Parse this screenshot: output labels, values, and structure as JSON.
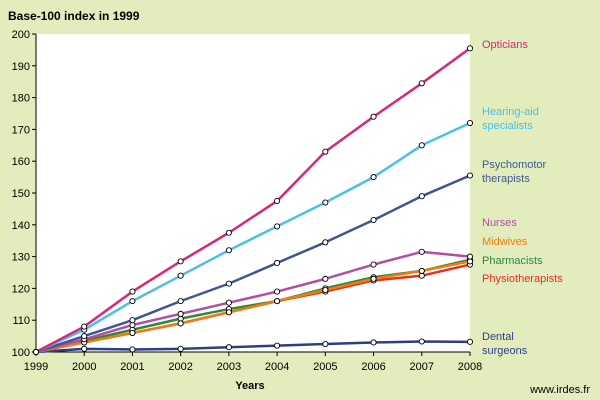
{
  "chart_data": {
    "type": "line",
    "title": "Base-100 index in 1999",
    "xlabel": "Years",
    "ylabel": "",
    "source_text": "www.irdes.fr",
    "x": [
      1999,
      2000,
      2001,
      2002,
      2003,
      2004,
      2005,
      2006,
      2007,
      2008
    ],
    "ylim": [
      100,
      200
    ],
    "yticks": [
      100,
      110,
      120,
      130,
      140,
      150,
      160,
      170,
      180,
      190,
      200
    ],
    "grid": false,
    "legend": "inline-right",
    "series": [
      {
        "name": "Opticians",
        "label_lines": [
          "Opticians"
        ],
        "color": "#d6287a",
        "values": [
          100,
          108,
          119,
          128.5,
          137.5,
          147.5,
          163,
          174,
          184.5,
          195.5
        ]
      },
      {
        "name": "Hearing-aid specialists",
        "label_lines": [
          "Hearing-aid",
          "specialists"
        ],
        "color": "#4cc0e6",
        "values": [
          100,
          107,
          116,
          124,
          132,
          139.5,
          147,
          155,
          165,
          172
        ]
      },
      {
        "name": "Psychomotor therapists",
        "label_lines": [
          "Psychomotor",
          "therapists"
        ],
        "color": "#3e5793",
        "values": [
          100,
          105,
          110,
          116,
          121.5,
          128,
          134.5,
          141.5,
          149,
          155.5
        ]
      },
      {
        "name": "Nurses",
        "label_lines": [
          "Nurses"
        ],
        "color": "#b44ea0",
        "values": [
          100,
          104,
          108.5,
          112,
          115.5,
          119,
          123,
          127.5,
          131.5,
          130
        ]
      },
      {
        "name": "Midwives",
        "label_lines": [
          "Midwives"
        ],
        "color": "#ee7d10",
        "values": [
          100,
          103,
          106,
          109,
          112.5,
          116,
          119.5,
          123,
          125.5,
          128.5
        ]
      },
      {
        "name": "Pharmacists",
        "label_lines": [
          "Pharmacists"
        ],
        "color": "#2a8a3a",
        "values": [
          100,
          103.5,
          107,
          110.5,
          113.5,
          116,
          120,
          123.5,
          125.5,
          129
        ]
      },
      {
        "name": "Physiotherapists",
        "label_lines": [
          "Physiotherapists"
        ],
        "color": "#e8301e",
        "values": [
          100,
          103,
          106,
          109,
          112.5,
          116,
          119,
          122.5,
          124,
          127.5
        ]
      },
      {
        "name": "Dental surgeons",
        "label_lines": [
          "Dental",
          "surgeons"
        ],
        "color": "#2c3f85",
        "values": [
          100,
          101,
          100.8,
          101,
          101.5,
          102,
          102.5,
          103,
          103.3,
          103.2
        ]
      }
    ]
  }
}
